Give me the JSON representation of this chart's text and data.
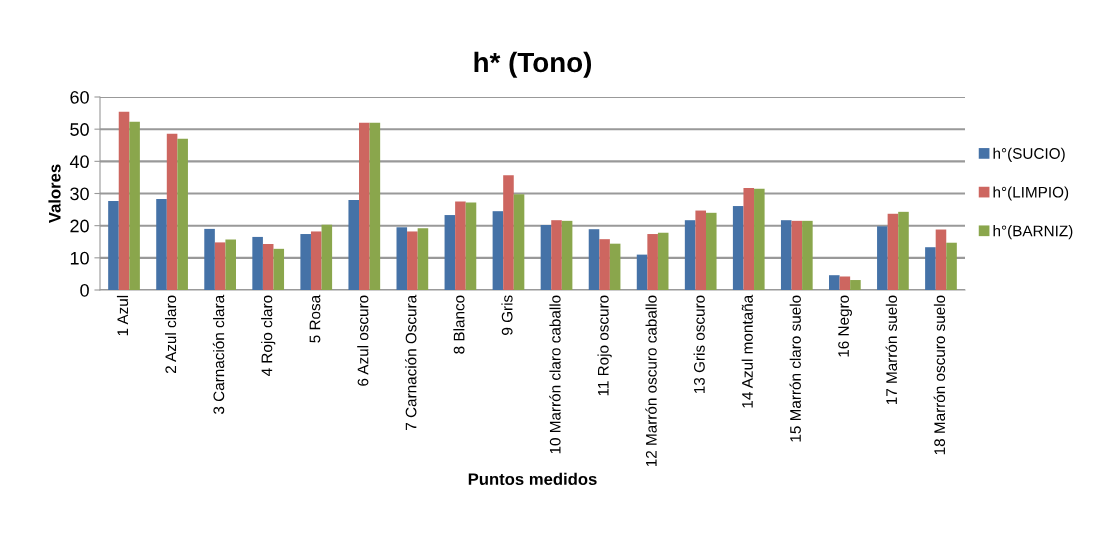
{
  "chart_data": {
    "type": "bar",
    "title": "h* (Tono)",
    "xlabel": "Puntos medidos",
    "ylabel": "Valores",
    "categories": [
      "1 Azul",
      "2 Azul claro",
      "3 Carnación clara",
      "4 Rojo claro",
      "5 Rosa",
      "6 Azul oscuro",
      "7 Carnación Oscura",
      "8 Blanco",
      "9 Gris",
      "10 Marrón claro caballo",
      "11 Rojo oscuro",
      "12 Marrón oscuro caballo",
      "13 Gris oscuro",
      "14 Azul montaña",
      "15 Marrón claro suelo",
      "16 Negro",
      "17 Marrón suelo",
      "18 Marrón oscuro suelo"
    ],
    "series": [
      {
        "name": "h°(SUCIO)",
        "color": "#4572a7",
        "values": [
          27.7,
          28.3,
          19.0,
          16.5,
          17.4,
          28.0,
          19.5,
          23.3,
          24.5,
          20.2,
          18.9,
          11.0,
          21.7,
          26.1,
          21.7,
          4.6,
          19.8,
          13.3
        ]
      },
      {
        "name": "h°(LIMPIO)",
        "color": "#cd6660",
        "values": [
          55.4,
          48.6,
          14.8,
          14.3,
          18.2,
          52.0,
          18.2,
          27.5,
          35.7,
          21.7,
          15.8,
          17.4,
          24.7,
          31.7,
          21.5,
          4.2,
          23.7,
          18.8
        ]
      },
      {
        "name": "h°(BARNIZ)",
        "color": "#8aa64c",
        "values": [
          52.3,
          47.0,
          15.7,
          12.8,
          20.3,
          52.0,
          19.2,
          27.2,
          29.8,
          21.5,
          14.4,
          17.8,
          24.0,
          31.5,
          21.5,
          3.1,
          24.3,
          14.7
        ]
      }
    ],
    "ylim": [
      0,
      60
    ],
    "yticks": [
      0,
      10,
      20,
      30,
      40,
      50,
      60
    ],
    "grid": "y",
    "legend": "right"
  }
}
